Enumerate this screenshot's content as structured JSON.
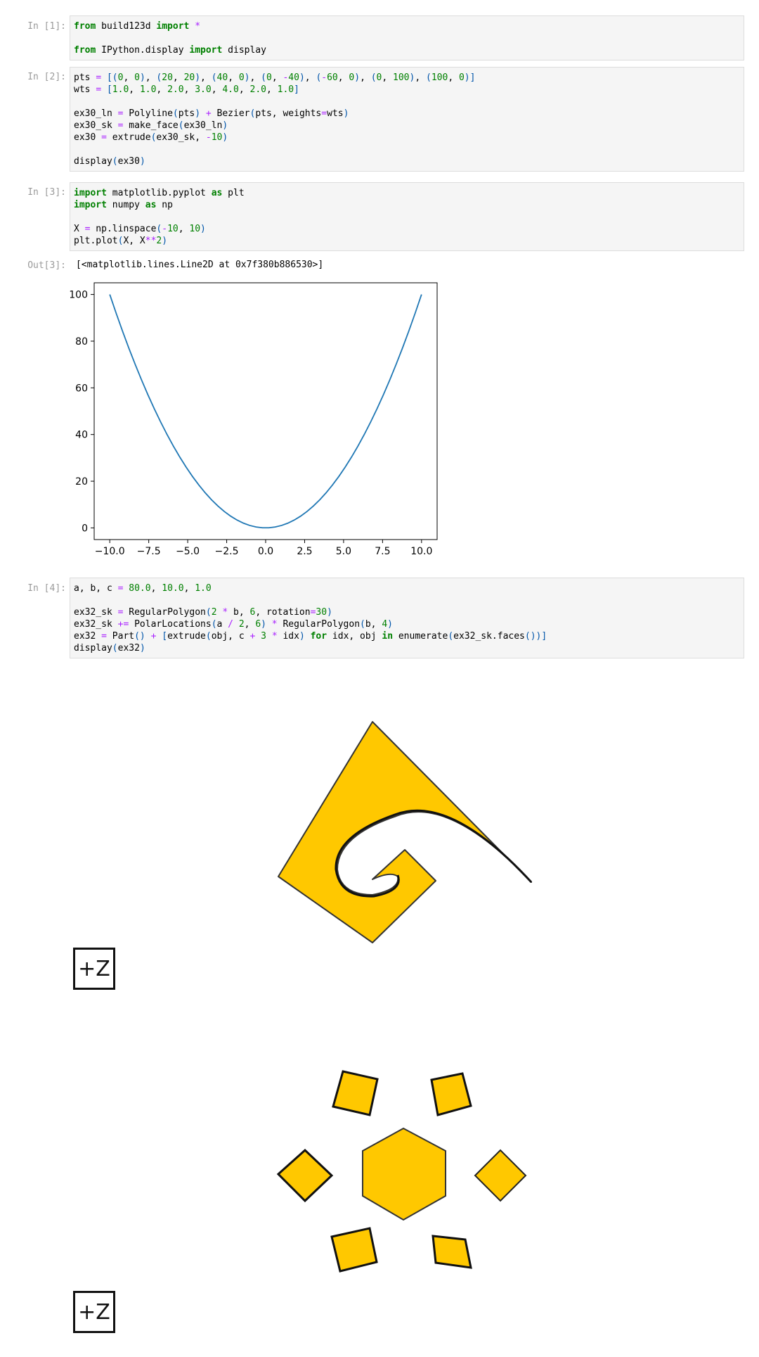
{
  "cells": [
    {
      "prompt": "In [1]:",
      "lines": [
        [
          [
            "k",
            "from"
          ],
          [
            "t",
            " build123d "
          ],
          [
            "k",
            "import"
          ],
          [
            "t",
            " "
          ],
          [
            "o",
            "*"
          ]
        ],
        [],
        [
          [
            "k",
            "from"
          ],
          [
            "t",
            " IPython.display "
          ],
          [
            "k",
            "import"
          ],
          [
            "t",
            " display"
          ]
        ]
      ]
    },
    {
      "prompt": "In [2]:",
      "lines": [
        [
          [
            "t",
            "pts "
          ],
          [
            "o",
            "="
          ],
          [
            "t",
            " "
          ],
          [
            "p",
            "[("
          ],
          [
            "n",
            "0"
          ],
          [
            "t",
            ", "
          ],
          [
            "n",
            "0"
          ],
          [
            "p",
            ")"
          ],
          [
            "t",
            ", "
          ],
          [
            "p",
            "("
          ],
          [
            "n",
            "20"
          ],
          [
            "t",
            ", "
          ],
          [
            "n",
            "20"
          ],
          [
            "p",
            ")"
          ],
          [
            "t",
            ", "
          ],
          [
            "p",
            "("
          ],
          [
            "n",
            "40"
          ],
          [
            "t",
            ", "
          ],
          [
            "n",
            "0"
          ],
          [
            "p",
            ")"
          ],
          [
            "t",
            ", "
          ],
          [
            "p",
            "("
          ],
          [
            "n",
            "0"
          ],
          [
            "t",
            ", "
          ],
          [
            "o",
            "-"
          ],
          [
            "n",
            "40"
          ],
          [
            "p",
            ")"
          ],
          [
            "t",
            ", "
          ],
          [
            "p",
            "("
          ],
          [
            "o",
            "-"
          ],
          [
            "n",
            "60"
          ],
          [
            "t",
            ", "
          ],
          [
            "n",
            "0"
          ],
          [
            "p",
            ")"
          ],
          [
            "t",
            ", "
          ],
          [
            "p",
            "("
          ],
          [
            "n",
            "0"
          ],
          [
            "t",
            ", "
          ],
          [
            "n",
            "100"
          ],
          [
            "p",
            ")"
          ],
          [
            "t",
            ", "
          ],
          [
            "p",
            "("
          ],
          [
            "n",
            "100"
          ],
          [
            "t",
            ", "
          ],
          [
            "n",
            "0"
          ],
          [
            "p",
            ")]"
          ]
        ],
        [
          [
            "t",
            "wts "
          ],
          [
            "o",
            "="
          ],
          [
            "t",
            " "
          ],
          [
            "p",
            "["
          ],
          [
            "n",
            "1.0"
          ],
          [
            "t",
            ", "
          ],
          [
            "n",
            "1.0"
          ],
          [
            "t",
            ", "
          ],
          [
            "n",
            "2.0"
          ],
          [
            "t",
            ", "
          ],
          [
            "n",
            "3.0"
          ],
          [
            "t",
            ", "
          ],
          [
            "n",
            "4.0"
          ],
          [
            "t",
            ", "
          ],
          [
            "n",
            "2.0"
          ],
          [
            "t",
            ", "
          ],
          [
            "n",
            "1.0"
          ],
          [
            "p",
            "]"
          ]
        ],
        [],
        [
          [
            "t",
            "ex30_ln "
          ],
          [
            "o",
            "="
          ],
          [
            "t",
            " Polyline"
          ],
          [
            "p",
            "("
          ],
          [
            "t",
            "pts"
          ],
          [
            "p",
            ")"
          ],
          [
            "t",
            " "
          ],
          [
            "o",
            "+"
          ],
          [
            "t",
            " Bezier"
          ],
          [
            "p",
            "("
          ],
          [
            "t",
            "pts, weights"
          ],
          [
            "o",
            "="
          ],
          [
            "t",
            "wts"
          ],
          [
            "p",
            ")"
          ]
        ],
        [
          [
            "t",
            "ex30_sk "
          ],
          [
            "o",
            "="
          ],
          [
            "t",
            " make_face"
          ],
          [
            "p",
            "("
          ],
          [
            "t",
            "ex30_ln"
          ],
          [
            "p",
            ")"
          ]
        ],
        [
          [
            "t",
            "ex30 "
          ],
          [
            "o",
            "="
          ],
          [
            "t",
            " extrude"
          ],
          [
            "p",
            "("
          ],
          [
            "t",
            "ex30_sk, "
          ],
          [
            "o",
            "-"
          ],
          [
            "n",
            "10"
          ],
          [
            "p",
            ")"
          ]
        ],
        [],
        [
          [
            "t",
            "display"
          ],
          [
            "p",
            "("
          ],
          [
            "t",
            "ex30"
          ],
          [
            "p",
            ")"
          ]
        ]
      ]
    },
    {
      "prompt": "In [3]:",
      "lines": [
        [
          [
            "k",
            "import"
          ],
          [
            "t",
            " matplotlib.pyplot "
          ],
          [
            "k",
            "as"
          ],
          [
            "t",
            " plt"
          ]
        ],
        [
          [
            "k",
            "import"
          ],
          [
            "t",
            " numpy "
          ],
          [
            "k",
            "as"
          ],
          [
            "t",
            " np"
          ]
        ],
        [],
        [
          [
            "t",
            "X "
          ],
          [
            "o",
            "="
          ],
          [
            "t",
            " np.linspace"
          ],
          [
            "p",
            "("
          ],
          [
            "o",
            "-"
          ],
          [
            "n",
            "10"
          ],
          [
            "t",
            ", "
          ],
          [
            "n",
            "10"
          ],
          [
            "p",
            ")"
          ]
        ],
        [
          [
            "t",
            "plt.plot"
          ],
          [
            "p",
            "("
          ],
          [
            "t",
            "X, X"
          ],
          [
            "o",
            "**"
          ],
          [
            "n",
            "2"
          ],
          [
            "p",
            ")"
          ]
        ]
      ]
    },
    {
      "prompt": "In [4]:",
      "lines": [
        [
          [
            "t",
            "a, b, c "
          ],
          [
            "o",
            "="
          ],
          [
            "t",
            " "
          ],
          [
            "n",
            "80.0"
          ],
          [
            "t",
            ", "
          ],
          [
            "n",
            "10.0"
          ],
          [
            "t",
            ", "
          ],
          [
            "n",
            "1.0"
          ]
        ],
        [],
        [
          [
            "t",
            "ex32_sk "
          ],
          [
            "o",
            "="
          ],
          [
            "t",
            " RegularPolygon"
          ],
          [
            "p",
            "("
          ],
          [
            "n",
            "2"
          ],
          [
            "t",
            " "
          ],
          [
            "o",
            "*"
          ],
          [
            "t",
            " b, "
          ],
          [
            "n",
            "6"
          ],
          [
            "t",
            ", rotation"
          ],
          [
            "o",
            "="
          ],
          [
            "n",
            "30"
          ],
          [
            "p",
            ")"
          ]
        ],
        [
          [
            "t",
            "ex32_sk "
          ],
          [
            "o",
            "+="
          ],
          [
            "t",
            " PolarLocations"
          ],
          [
            "p",
            "("
          ],
          [
            "t",
            "a "
          ],
          [
            "o",
            "/"
          ],
          [
            "t",
            " "
          ],
          [
            "n",
            "2"
          ],
          [
            "t",
            ", "
          ],
          [
            "n",
            "6"
          ],
          [
            "p",
            ")"
          ],
          [
            "t",
            " "
          ],
          [
            "o",
            "*"
          ],
          [
            "t",
            " RegularPolygon"
          ],
          [
            "p",
            "("
          ],
          [
            "t",
            "b, "
          ],
          [
            "n",
            "4"
          ],
          [
            "p",
            ")"
          ]
        ],
        [
          [
            "t",
            "ex32 "
          ],
          [
            "o",
            "="
          ],
          [
            "t",
            " Part"
          ],
          [
            "p",
            "()"
          ],
          [
            "t",
            " "
          ],
          [
            "o",
            "+"
          ],
          [
            "t",
            " "
          ],
          [
            "p",
            "["
          ],
          [
            "t",
            "extrude"
          ],
          [
            "p",
            "("
          ],
          [
            "t",
            "obj, c "
          ],
          [
            "o",
            "+"
          ],
          [
            "t",
            " "
          ],
          [
            "n",
            "3"
          ],
          [
            "t",
            " "
          ],
          [
            "o",
            "*"
          ],
          [
            "t",
            " idx"
          ],
          [
            "p",
            ")"
          ],
          [
            "t",
            " "
          ],
          [
            "k",
            "for"
          ],
          [
            "t",
            " idx, obj "
          ],
          [
            "k",
            "in"
          ],
          [
            "t",
            " enumerate"
          ],
          [
            "p",
            "("
          ],
          [
            "t",
            "ex32_sk.faces"
          ],
          [
            "p",
            "())]"
          ]
        ],
        [
          [
            "t",
            "display"
          ],
          [
            "p",
            "("
          ],
          [
            "t",
            "ex32"
          ],
          [
            "p",
            ")"
          ]
        ]
      ]
    }
  ],
  "output3": {
    "prompt": "Out[3]:",
    "text": "[<matplotlib.lines.Line2D at 0x7f380b886530>]"
  },
  "axis_widget_label": "+Z",
  "chart_data": {
    "type": "line",
    "title": "",
    "xlabel": "",
    "ylabel": "",
    "xlim": [
      -11,
      11
    ],
    "ylim": [
      -5,
      105
    ],
    "xticks": [
      "−10.0",
      "−7.5",
      "−5.0",
      "−2.5",
      "0.0",
      "2.5",
      "5.0",
      "7.5",
      "10.0"
    ],
    "yticks": [
      "0",
      "20",
      "40",
      "60",
      "80",
      "100"
    ],
    "xtick_values": [
      -10,
      -7.5,
      -5,
      -2.5,
      0,
      2.5,
      5,
      7.5,
      10
    ],
    "ytick_values": [
      0,
      20,
      40,
      60,
      80,
      100
    ],
    "series": [
      {
        "color": "#1f77b4",
        "x_range": [
          -10,
          10
        ],
        "points": 50,
        "function": "x^2"
      }
    ]
  },
  "colors": {
    "shape_fill": "#ffc800",
    "shape_edge": "#333333",
    "line": "#1f77b4"
  }
}
